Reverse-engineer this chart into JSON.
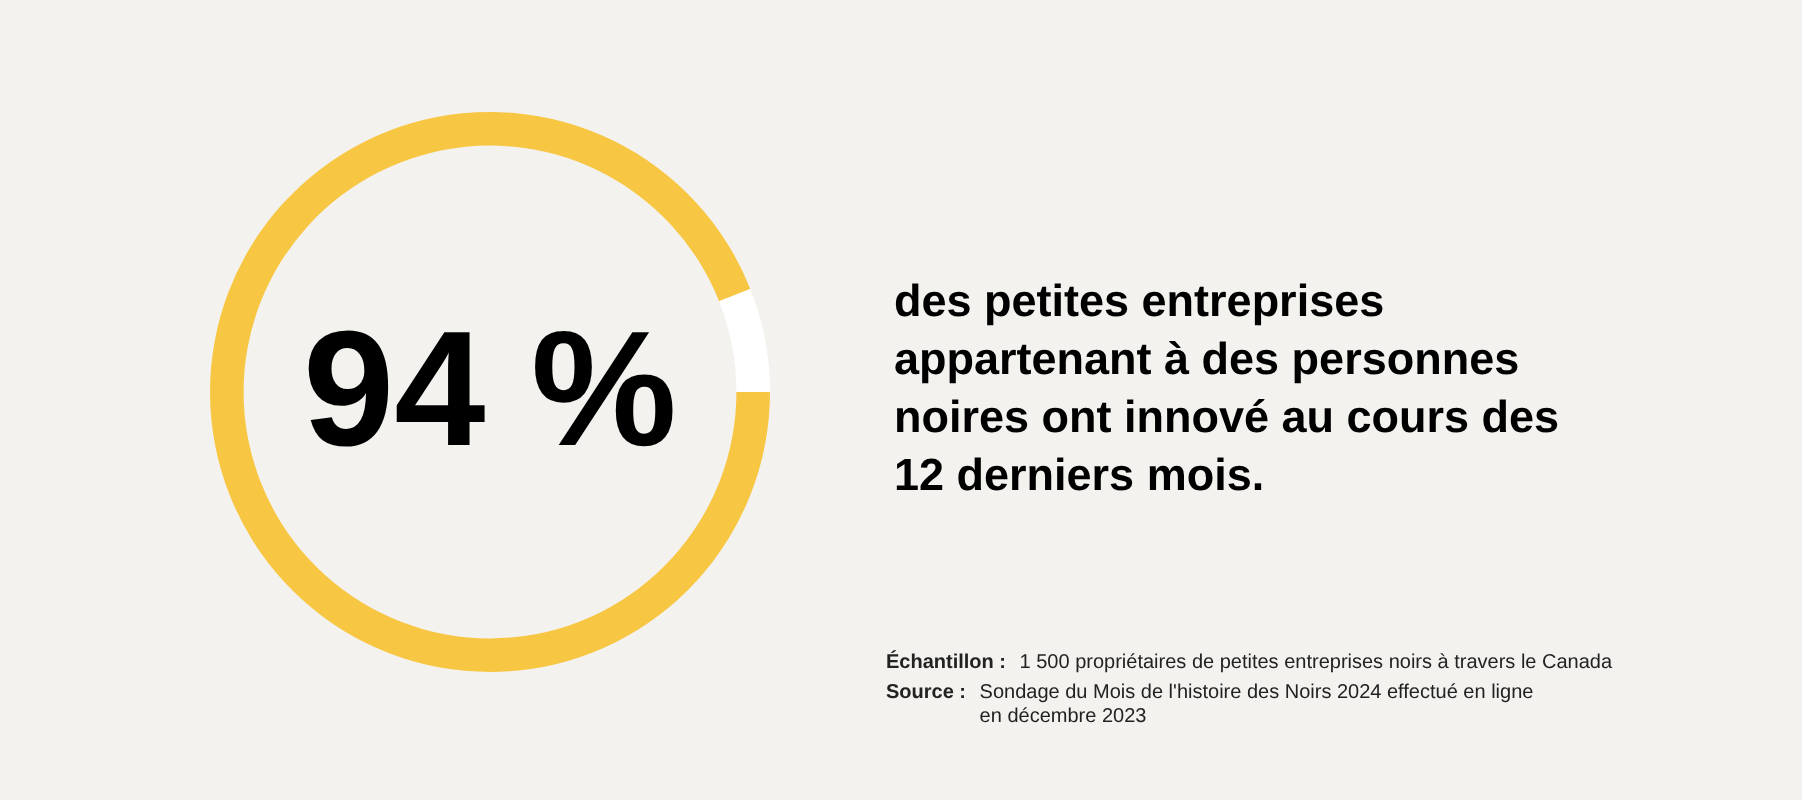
{
  "chart_data": {
    "type": "donut",
    "categories": [
      null,
      null
    ],
    "values": [
      94,
      6
    ],
    "colors": [
      "#f7c744",
      "#ffffff"
    ],
    "value_labels": [
      "94 %",
      null
    ],
    "annotations": [
      "des petites entreprises appartenant à des personnes noires ont innové au cours des 12 derniers mois.",
      "Échantillon : 1 500 propriétaires de petites entreprises noirs à travers le Canada",
      "Source : Sondage du Mois de l'histoire des Noirs 2024 effectué en ligne en décembre 2023"
    ],
    "legend": false
  }
}
